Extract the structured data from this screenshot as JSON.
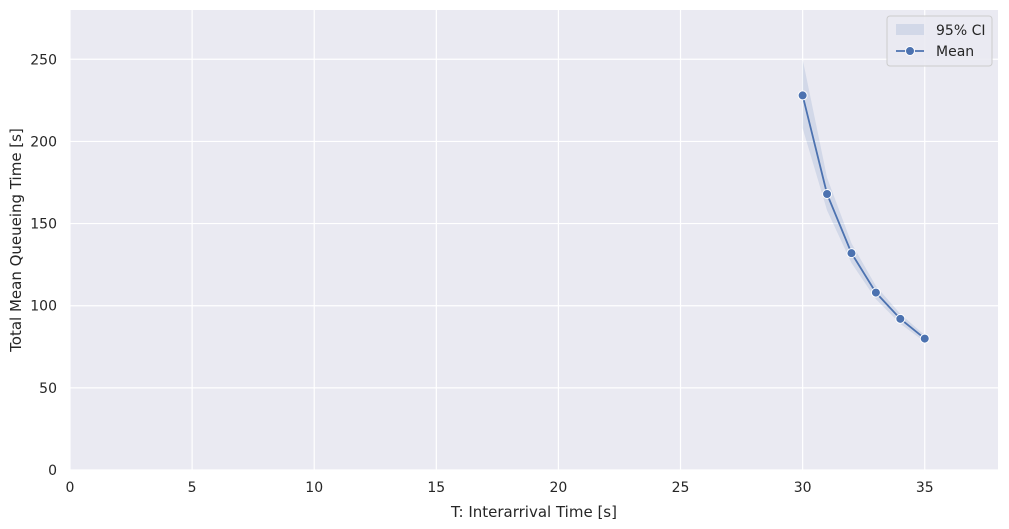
{
  "chart_data": {
    "type": "line",
    "xlabel": "T: Interarrival Time [s]",
    "ylabel": "Total Mean Queueing Time [s]",
    "xlim": [
      0,
      38
    ],
    "ylim": [
      0,
      280
    ],
    "xticks": [
      0,
      5,
      10,
      15,
      20,
      25,
      30,
      35
    ],
    "yticks": [
      0,
      50,
      100,
      150,
      200,
      250
    ],
    "grid": true,
    "legend_position": "top-right",
    "series": [
      {
        "name": "Mean",
        "color": "#4c72b0",
        "marker": "circle",
        "x": [
          30,
          31,
          32,
          33,
          34,
          35
        ],
        "y": [
          228,
          168,
          132,
          108,
          92,
          80
        ]
      }
    ],
    "ci_band": {
      "name": "95% CI",
      "color": "#4c72b0",
      "x": [
        30,
        31,
        32,
        33,
        34,
        35
      ],
      "lower": [
        208,
        158,
        126,
        104,
        89,
        78
      ],
      "upper": [
        250,
        178,
        138,
        112,
        95,
        82
      ]
    },
    "background_color": "#eaeaf2",
    "grid_color": "#ffffff"
  }
}
